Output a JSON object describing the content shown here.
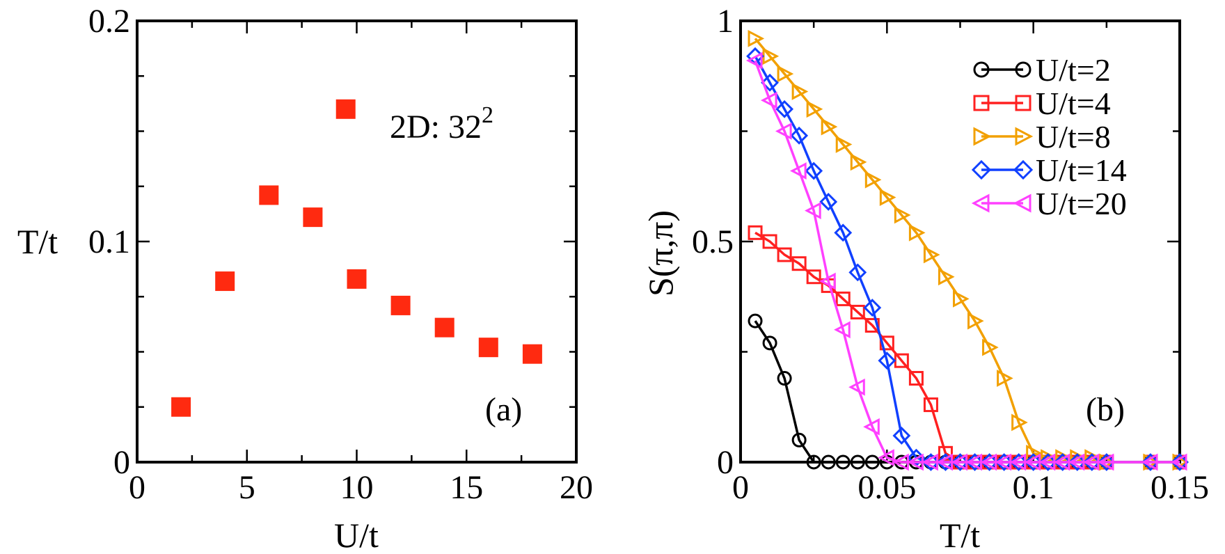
{
  "chart_data": [
    {
      "panel": "(a)",
      "type": "scatter",
      "xlabel": "U/t",
      "ylabel": "T/t",
      "xlim": [
        0,
        20
      ],
      "ylim": [
        0,
        0.2
      ],
      "xticks": [
        0,
        5,
        10,
        15,
        20
      ],
      "xtick_labels": [
        "0",
        "5",
        "10",
        "15",
        "20"
      ],
      "yticks": [
        0,
        0.1,
        0.2
      ],
      "ytick_labels": [
        "0",
        "0.1",
        "0.2"
      ],
      "annotation_base": "2D: 32",
      "annotation_exp": "2",
      "panel_label": "(a)",
      "marker": "filled-square",
      "color": "#ff2a10",
      "x": [
        2,
        4,
        6,
        8,
        9.5,
        10,
        12,
        14,
        16,
        18
      ],
      "y": [
        0.025,
        0.082,
        0.121,
        0.111,
        0.16,
        0.083,
        0.071,
        0.061,
        0.052,
        0.049
      ]
    },
    {
      "panel": "(b)",
      "type": "line",
      "xlabel": "T/t",
      "ylabel": "S(π,π)",
      "xlim": [
        0,
        0.15
      ],
      "ylim": [
        0,
        1
      ],
      "xticks": [
        0,
        0.05,
        0.1,
        0.15
      ],
      "xtick_labels": [
        "0",
        "0.05",
        "0.1",
        "0.15"
      ],
      "yticks": [
        0,
        0.5,
        1
      ],
      "ytick_labels": [
        "0",
        "0.5",
        "1"
      ],
      "panel_label": "(b)",
      "legend_position": "top-right",
      "series": [
        {
          "name": "U/t=2",
          "color": "#000000",
          "marker": "circle",
          "x": [
            0.005,
            0.01,
            0.015,
            0.02,
            0.025,
            0.03,
            0.035,
            0.04,
            0.045,
            0.05,
            0.055,
            0.06,
            0.065,
            0.07,
            0.075,
            0.08,
            0.085,
            0.09,
            0.095,
            0.1,
            0.105,
            0.11,
            0.115,
            0.12,
            0.125,
            0.14,
            0.15
          ],
          "y": [
            0.32,
            0.27,
            0.19,
            0.05,
            0,
            0,
            0,
            0,
            0,
            0,
            0,
            0,
            0,
            0,
            0,
            0,
            0,
            0,
            0,
            0,
            0,
            0,
            0,
            0,
            0,
            0,
            0
          ]
        },
        {
          "name": "U/t=4",
          "color": "#ff2020",
          "marker": "square",
          "x": [
            0.005,
            0.01,
            0.015,
            0.02,
            0.025,
            0.03,
            0.035,
            0.04,
            0.045,
            0.05,
            0.055,
            0.06,
            0.065,
            0.07,
            0.075,
            0.08,
            0.085,
            0.09,
            0.095,
            0.1,
            0.105,
            0.11,
            0.115,
            0.12,
            0.125,
            0.14,
            0.15
          ],
          "y": [
            0.52,
            0.5,
            0.47,
            0.45,
            0.42,
            0.4,
            0.37,
            0.34,
            0.31,
            0.27,
            0.23,
            0.19,
            0.13,
            0.02,
            0,
            0,
            0,
            0,
            0,
            0,
            0,
            0,
            0,
            0,
            0,
            0,
            0
          ]
        },
        {
          "name": "U/t=8",
          "color": "#f2a000",
          "marker": "triangle-right",
          "x": [
            0.005,
            0.01,
            0.015,
            0.02,
            0.025,
            0.03,
            0.035,
            0.04,
            0.045,
            0.05,
            0.055,
            0.06,
            0.065,
            0.07,
            0.075,
            0.08,
            0.085,
            0.09,
            0.095,
            0.1,
            0.105,
            0.11,
            0.115,
            0.12,
            0.125,
            0.14,
            0.15
          ],
          "y": [
            0.96,
            0.92,
            0.88,
            0.84,
            0.8,
            0.76,
            0.72,
            0.68,
            0.64,
            0.6,
            0.56,
            0.52,
            0.47,
            0.42,
            0.37,
            0.32,
            0.26,
            0.19,
            0.09,
            0.02,
            0.01,
            0.01,
            0.01,
            0.01,
            0,
            0,
            0
          ]
        },
        {
          "name": "U/t=14",
          "color": "#1040ff",
          "marker": "diamond",
          "x": [
            0.005,
            0.01,
            0.015,
            0.02,
            0.025,
            0.03,
            0.035,
            0.04,
            0.045,
            0.05,
            0.055,
            0.06,
            0.065,
            0.07,
            0.075,
            0.08,
            0.085,
            0.09,
            0.095,
            0.1,
            0.105,
            0.11,
            0.115,
            0.12,
            0.125,
            0.14,
            0.15
          ],
          "y": [
            0.92,
            0.86,
            0.8,
            0.74,
            0.66,
            0.59,
            0.52,
            0.43,
            0.35,
            0.23,
            0.06,
            0.01,
            0,
            0,
            0,
            0,
            0,
            0,
            0,
            0,
            0,
            0,
            0,
            0,
            0,
            0,
            0
          ]
        },
        {
          "name": "U/t=20",
          "color": "#ff40ff",
          "marker": "triangle-left",
          "x": [
            0.005,
            0.01,
            0.015,
            0.02,
            0.025,
            0.03,
            0.035,
            0.04,
            0.045,
            0.05,
            0.055,
            0.06,
            0.065,
            0.07,
            0.075,
            0.08,
            0.085,
            0.09,
            0.095,
            0.1,
            0.105,
            0.11,
            0.115,
            0.12,
            0.125,
            0.14,
            0.15
          ],
          "y": [
            0.91,
            0.82,
            0.75,
            0.66,
            0.57,
            0.41,
            0.3,
            0.17,
            0.08,
            0.01,
            0,
            0,
            0,
            0,
            0,
            0,
            0,
            0,
            0,
            0,
            0,
            0,
            0,
            0,
            0,
            0,
            0
          ]
        }
      ]
    }
  ]
}
